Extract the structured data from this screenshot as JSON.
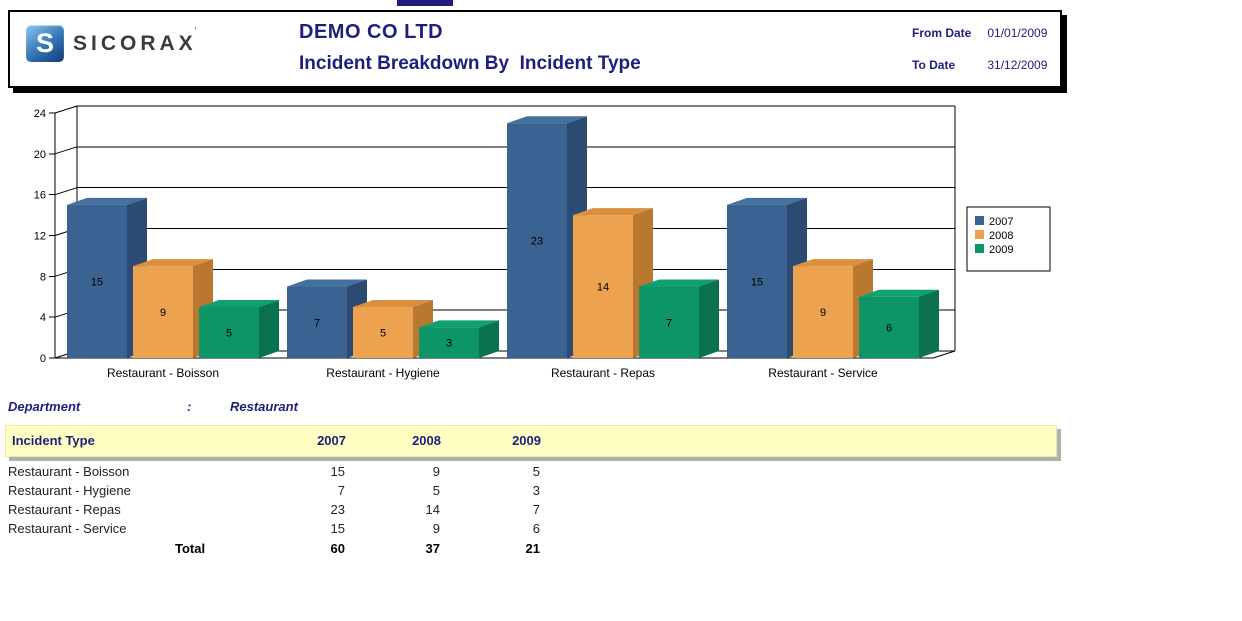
{
  "header": {
    "logo_mark": "S",
    "logo_text": "SICORAX",
    "logo_tm": "'",
    "company": "DEMO CO LTD",
    "report_title": "Incident Breakdown By  Incident Type",
    "from_date_label": "From Date",
    "from_date_value": "01/01/2009",
    "to_date_label": "To Date",
    "to_date_value": "31/12/2009"
  },
  "chart_data": {
    "type": "bar",
    "style": "3d-column",
    "title": "",
    "xlabel": "",
    "ylabel": "",
    "categories": [
      "Restaurant - Boisson",
      "Restaurant - Hygiene",
      "Restaurant - Repas",
      "Restaurant - Service"
    ],
    "series": [
      {
        "name": "2007",
        "values": [
          15,
          7,
          23,
          15
        ],
        "color": "#3A6392",
        "color_top": "#44719F",
        "color_side": "#2B4B72"
      },
      {
        "name": "2008",
        "values": [
          9,
          5,
          14,
          9
        ],
        "color": "#EDA24F",
        "color_top": "#D98F3D",
        "color_side": "#B97730"
      },
      {
        "name": "2009",
        "values": [
          5,
          3,
          7,
          6
        ],
        "color": "#0D9467",
        "color_top": "#10A173",
        "color_side": "#0A7150"
      }
    ],
    "ylim": [
      0,
      24
    ],
    "ytick_step": 4,
    "grid": true,
    "legend_position": "right",
    "bar_value_labels": true
  },
  "department": {
    "label": "Department",
    "separator": ":",
    "value": "Restaurant"
  },
  "table": {
    "header": {
      "incident_type": "Incident Type",
      "columns": [
        "2007",
        "2008",
        "2009"
      ]
    },
    "rows": [
      {
        "label": "Restaurant - Boisson",
        "values": [
          15,
          9,
          5
        ]
      },
      {
        "label": "Restaurant - Hygiene",
        "values": [
          7,
          5,
          3
        ]
      },
      {
        "label": "Restaurant - Repas",
        "values": [
          23,
          14,
          7
        ]
      },
      {
        "label": "Restaurant - Service",
        "values": [
          15,
          9,
          6
        ]
      }
    ],
    "total": {
      "label": "Total",
      "values": [
        60,
        37,
        21
      ]
    }
  },
  "colors": {
    "navy_text": "#1e1e7e",
    "band_background": "#ffffc4",
    "band_shadow": "#b0b0b0",
    "axis_line": "#000000"
  }
}
